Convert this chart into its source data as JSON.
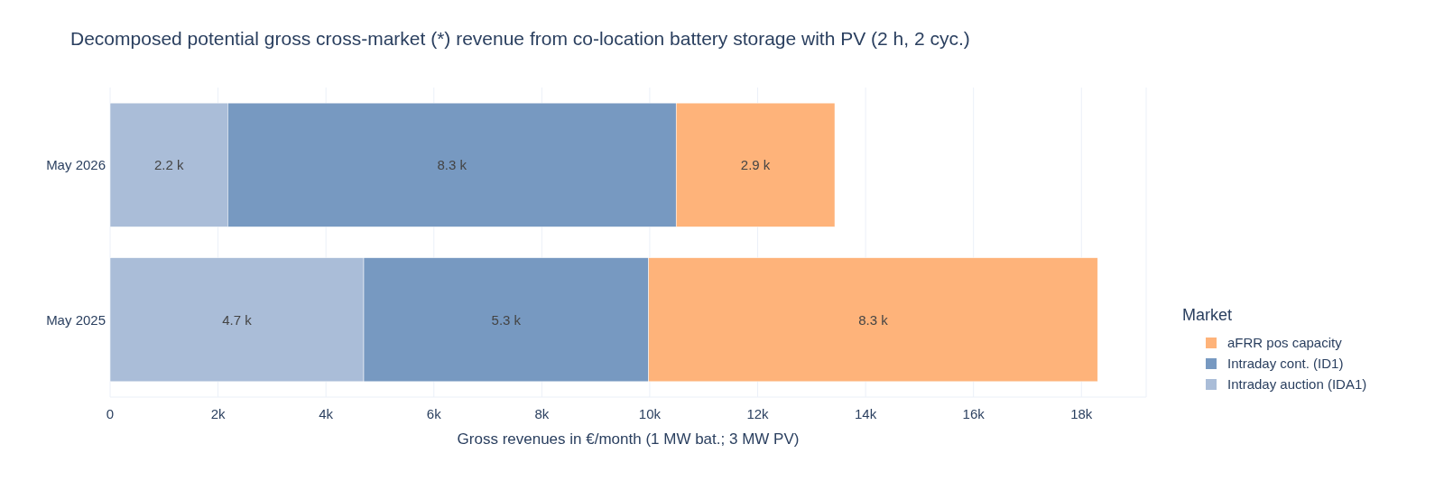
{
  "chart_data": {
    "type": "bar",
    "orientation": "horizontal",
    "stacked": true,
    "title": "Decomposed potential gross cross-market (*) revenue from co-location battery storage with PV (2 h, 2 cyc.)",
    "xlabel": "Gross revenues in €/month (1 MW bat.; 3 MW PV)",
    "legend_title": "Market",
    "legend": "bottom right",
    "grid": "x",
    "categories": [
      "May 2026",
      "May 2025"
    ],
    "xlim": [
      0,
      19200
    ],
    "xticks": [
      0,
      {
        "value": 2000,
        "label": "2k"
      },
      {
        "value": 4000,
        "label": "4k"
      },
      {
        "value": 6000,
        "label": "6k"
      },
      {
        "value": 8000,
        "label": "8k"
      },
      {
        "value": 10000,
        "label": "10k"
      },
      {
        "value": 12000,
        "label": "12k"
      },
      {
        "value": 14000,
        "label": "14k"
      },
      {
        "value": 16000,
        "label": "16k"
      },
      {
        "value": 18000,
        "label": "18k"
      }
    ],
    "series": [
      {
        "name": "Intraday auction (IDA1)",
        "color": "#aabdd8",
        "values": [
          2180,
          4700
        ],
        "value_labels": [
          "2.2 k",
          "4.7 k"
        ]
      },
      {
        "name": "Intraday cont. (ID1)",
        "color": "#7799c1",
        "values": [
          8310,
          5280
        ],
        "value_labels": [
          "8.3 k",
          "5.3 k"
        ]
      },
      {
        "name": "aFRR pos capacity",
        "color": "#feb37a",
        "values": [
          2940,
          8320
        ],
        "value_labels": [
          "2.9 k",
          "8.3 k"
        ]
      }
    ]
  }
}
